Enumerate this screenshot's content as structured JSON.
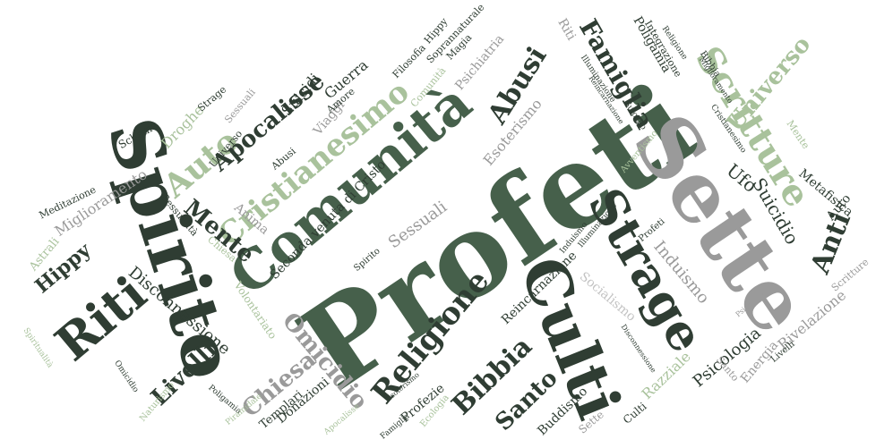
{
  "palette": {
    "dark": "#2f3d33",
    "green": "#46604b",
    "mid_green": "#7f9d78",
    "light_green": "#a9c29c",
    "gray": "#9a9a9a",
    "light_gray": "#c3c3c3"
  },
  "words": [
    {
      "id": "profeti",
      "text": "Profeti",
      "size": 128,
      "rot": -34,
      "color": "green"
    },
    {
      "id": "sette",
      "text": "Sette",
      "size": 92,
      "rot": 56,
      "color": "gray"
    },
    {
      "id": "spirito",
      "text": "Spirito",
      "size": 78,
      "rot": 72,
      "color": "dark"
    },
    {
      "id": "comunita",
      "text": "Comunità",
      "size": 60,
      "rot": -40,
      "color": "green"
    },
    {
      "id": "culti",
      "text": "Culti",
      "size": 68,
      "rot": 68,
      "color": "dark"
    },
    {
      "id": "strage",
      "text": "Strage",
      "size": 54,
      "rot": 60,
      "color": "dark"
    },
    {
      "id": "riti",
      "text": "Riti",
      "size": 54,
      "rot": -40,
      "color": "dark"
    },
    {
      "id": "scritture",
      "text": "Scritture",
      "size": 40,
      "rot": 58,
      "color": "light_green"
    },
    {
      "id": "cristianesimo",
      "text": "Cristianesimo",
      "size": 34,
      "rot": -40,
      "color": "light_green"
    },
    {
      "id": "abusi",
      "text": "Abusi",
      "size": 30,
      "rot": -58,
      "color": "dark"
    },
    {
      "id": "religione",
      "text": "Religione",
      "size": 34,
      "rot": -50,
      "color": "dark"
    },
    {
      "id": "auto1",
      "text": "Auto",
      "size": 36,
      "rot": -40,
      "color": "light_green"
    },
    {
      "id": "famiglia",
      "text": "Famiglia",
      "size": 28,
      "rot": 60,
      "color": "dark"
    },
    {
      "id": "apocalisse",
      "text": "Apocalisse",
      "size": 26,
      "rot": -40,
      "color": "dark"
    },
    {
      "id": "mente",
      "text": "Mente",
      "size": 26,
      "rot": 40,
      "color": "dark"
    },
    {
      "id": "bibbia1",
      "text": "Bibbia",
      "size": 30,
      "rot": -44,
      "color": "dark"
    },
    {
      "id": "omicidio",
      "text": "Omicidio",
      "size": 26,
      "rot": 50,
      "color": "gray"
    },
    {
      "id": "chiesa1",
      "text": "Chiesa",
      "size": 26,
      "rot": -40,
      "color": "gray"
    },
    {
      "id": "santo",
      "text": "Santo",
      "size": 26,
      "rot": -44,
      "color": "dark"
    },
    {
      "id": "livelli1",
      "text": "Livelli",
      "size": 26,
      "rot": -44,
      "color": "dark"
    },
    {
      "id": "hippy1",
      "text": "Hippy",
      "size": 22,
      "rot": -40,
      "color": "dark"
    },
    {
      "id": "anti",
      "text": "Anti",
      "size": 30,
      "rot": -68,
      "color": "dark"
    },
    {
      "id": "universo",
      "text": "Universo",
      "size": 26,
      "rot": -50,
      "color": "light_green"
    },
    {
      "id": "ufo",
      "text": "Ufo",
      "size": 20,
      "rot": 40,
      "color": "dark"
    },
    {
      "id": "suicidio",
      "text": "Suicidio",
      "size": 20,
      "rot": 60,
      "color": "dark"
    },
    {
      "id": "induismo",
      "text": "Induismo",
      "size": 18,
      "rot": 50,
      "color": "gray"
    },
    {
      "id": "psicologia",
      "text": "Psicologia",
      "size": 18,
      "rot": -40,
      "color": "dark"
    },
    {
      "id": "disconnessione",
      "text": "Disconnessione",
      "size": 18,
      "rot": 40,
      "color": "dark"
    },
    {
      "id": "miglioramento1",
      "text": "Miglioramento",
      "size": 16,
      "rot": -34,
      "color": "gray"
    },
    {
      "id": "droghe",
      "text": "Droghe",
      "size": 16,
      "rot": -46,
      "color": "light_green"
    },
    {
      "id": "esoterismo",
      "text": "Esoterismo",
      "size": 16,
      "rot": -50,
      "color": "gray"
    },
    {
      "id": "seconda",
      "text": "Seconda venuta di Cristo",
      "size": 14,
      "rot": -46,
      "color": "dark"
    },
    {
      "id": "sessuali1",
      "text": "Sessuali",
      "size": 18,
      "rot": -36,
      "color": "gray"
    },
    {
      "id": "guerra",
      "text": "Guerra",
      "size": 16,
      "rot": -40,
      "color": "dark"
    },
    {
      "id": "suicidi",
      "text": "Suicidi",
      "size": 16,
      "rot": -50,
      "color": "dark"
    },
    {
      "id": "viaggi",
      "text": "Viaggi",
      "size": 14,
      "rot": -50,
      "color": "gray"
    },
    {
      "id": "psichiatria",
      "text": "Psichiatria",
      "size": 14,
      "rot": -50,
      "color": "gray"
    },
    {
      "id": "reincarnazione",
      "text": "Reincarnazione",
      "size": 14,
      "rot": -44,
      "color": "dark"
    },
    {
      "id": "socialismo",
      "text": "Socialismo",
      "size": 14,
      "rot": 40,
      "color": "light_gray"
    },
    {
      "id": "poligamia1",
      "text": "Poligamia",
      "size": 14,
      "rot": 60,
      "color": "dark"
    },
    {
      "id": "rivelazione",
      "text": "Rivelazione",
      "size": 16,
      "rot": -40,
      "color": "gray"
    },
    {
      "id": "metafisica",
      "text": "Metafisica",
      "size": 14,
      "rot": 40,
      "color": "dark"
    },
    {
      "id": "energia",
      "text": "Energia",
      "size": 14,
      "rot": -50,
      "color": "gray"
    },
    {
      "id": "razziale",
      "text": "Razziale",
      "size": 16,
      "rot": -44,
      "color": "light_green"
    },
    {
      "id": "profezie",
      "text": "Profezie",
      "size": 14,
      "rot": -40,
      "color": "dark"
    },
    {
      "id": "buddismo",
      "text": "Buddismo",
      "size": 14,
      "rot": -44,
      "color": "dark"
    },
    {
      "id": "donazioni",
      "text": "Donazioni",
      "size": 14,
      "rot": -40,
      "color": "dark"
    },
    {
      "id": "templari",
      "text": "Templari",
      "size": 13,
      "rot": -40,
      "color": "dark"
    },
    {
      "id": "anima",
      "text": "Anima",
      "size": 14,
      "rot": 40,
      "color": "gray"
    },
    {
      "id": "astrali",
      "text": "Astrali",
      "size": 13,
      "rot": -50,
      "color": "light_green"
    },
    {
      "id": "volontariato",
      "text": "Volontariato",
      "size": 12,
      "rot": 56,
      "color": "light_green"
    },
    {
      "id": "sessualita",
      "text": "Sessualità",
      "size": 11,
      "rot": 50,
      "color": "dark"
    },
    {
      "id": "amore",
      "text": "Amore",
      "size": 11,
      "rot": -40,
      "color": "dark"
    },
    {
      "id": "filosofia",
      "text": "Filosofia",
      "size": 11,
      "rot": -46,
      "color": "dark"
    },
    {
      "id": "magia",
      "text": "Magia",
      "size": 11,
      "rot": -46,
      "color": "dark"
    },
    {
      "id": "soprannaturale",
      "text": "Soprannaturale",
      "size": 11,
      "rot": -46,
      "color": "dark"
    },
    {
      "id": "schema",
      "text": "Schema",
      "size": 12,
      "rot": -30,
      "color": "dark"
    },
    {
      "id": "meditazione",
      "text": "Meditazione",
      "size": 11,
      "rot": -26,
      "color": "dark"
    },
    {
      "id": "strage2",
      "text": "Strage",
      "size": 11,
      "rot": -40,
      "color": "dark"
    },
    {
      "id": "universo2",
      "text": "Universo",
      "size": 11,
      "rot": -50,
      "color": "dark"
    },
    {
      "id": "abusi2",
      "text": "Abusi",
      "size": 11,
      "rot": -40,
      "color": "dark"
    },
    {
      "id": "sessuali2",
      "text": "Sessuali",
      "size": 11,
      "rot": -50,
      "color": "gray"
    },
    {
      "id": "comunita2",
      "text": "Comunità",
      "size": 11,
      "rot": -50,
      "color": "light_green"
    },
    {
      "id": "hippy2",
      "text": "Hippy",
      "size": 11,
      "rot": -50,
      "color": "dark"
    },
    {
      "id": "riti2",
      "text": "Riti",
      "size": 14,
      "rot": 60,
      "color": "gray"
    },
    {
      "id": "integrazione",
      "text": "Integrazione",
      "size": 11,
      "rot": 60,
      "color": "dark"
    },
    {
      "id": "religione2",
      "text": "Religione",
      "size": 9,
      "rot": 56,
      "color": "dark"
    },
    {
      "id": "bibbia2",
      "text": "Bibbia",
      "size": 10,
      "rot": 56,
      "color": "dark"
    },
    {
      "id": "miglioramento2",
      "text": "Miglioramento",
      "size": 8,
      "rot": 56,
      "color": "dark"
    },
    {
      "id": "cristianesimo2",
      "text": "Cristianesimo",
      "size": 9,
      "rot": 56,
      "color": "dark"
    },
    {
      "id": "mente2",
      "text": "Mente",
      "size": 11,
      "rot": 56,
      "color": "light_green"
    },
    {
      "id": "illuminazione1",
      "text": "Illuminazione",
      "size": 9,
      "rot": 56,
      "color": "dark"
    },
    {
      "id": "reincarnazione2",
      "text": "Reincarnazione",
      "size": 8,
      "rot": 56,
      "color": "dark"
    },
    {
      "id": "suicidio2",
      "text": "Suicidio",
      "size": 9,
      "rot": 56,
      "color": "dark"
    },
    {
      "id": "avventismo",
      "text": "Avventismo",
      "size": 10,
      "rot": -50,
      "color": "light_green"
    },
    {
      "id": "illuminazione2",
      "text": "Illuminazione",
      "size": 9,
      "rot": -50,
      "color": "dark"
    },
    {
      "id": "induismo2",
      "text": "Induismo",
      "size": 9,
      "rot": -50,
      "color": "dark"
    },
    {
      "id": "profeti2",
      "text": "Profeti",
      "size": 10,
      "rot": -40,
      "color": "dark"
    },
    {
      "id": "chiesa2",
      "text": "Chiesa",
      "size": 11,
      "rot": 40,
      "color": "light_green"
    },
    {
      "id": "naturismo",
      "text": "Naturismo",
      "size": 10,
      "rot": -50,
      "color": "light_green"
    },
    {
      "id": "spiritualita",
      "text": "Spiritualità",
      "size": 9,
      "rot": 56,
      "color": "light_green"
    },
    {
      "id": "omicidio2",
      "text": "Omicidio",
      "size": 9,
      "rot": 56,
      "color": "dark"
    },
    {
      "id": "poligamia2",
      "text": "Poligamia",
      "size": 9,
      "rot": 40,
      "color": "dark"
    },
    {
      "id": "piramidale",
      "text": "Piramidale",
      "size": 9,
      "rot": -40,
      "color": "light_green"
    },
    {
      "id": "apocalisse2",
      "text": "Apocalisse",
      "size": 9,
      "rot": -40,
      "color": "light_green"
    },
    {
      "id": "famiglia2",
      "text": "Famiglia",
      "size": 9,
      "rot": -40,
      "color": "dark"
    },
    {
      "id": "esoterismo2",
      "text": "Esoterismo",
      "size": 8,
      "rot": -40,
      "color": "dark"
    },
    {
      "id": "ecologia",
      "text": "Ecologia",
      "size": 10,
      "rot": -50,
      "color": "light_green"
    },
    {
      "id": "culti2",
      "text": "Culti",
      "size": 12,
      "rot": -40,
      "color": "dark"
    },
    {
      "id": "sette2",
      "text": "Sette",
      "size": 12,
      "rot": -40,
      "color": "gray"
    },
    {
      "id": "santo2",
      "text": "Santo",
      "size": 11,
      "rot": 50,
      "color": "gray"
    },
    {
      "id": "livelli2",
      "text": "Livelli",
      "size": 10,
      "rot": -40,
      "color": "dark"
    },
    {
      "id": "scritture2",
      "text": "Scritture",
      "size": 11,
      "rot": -40,
      "color": "gray"
    },
    {
      "id": "disconnessione2",
      "text": "Disconnessione",
      "size": 8,
      "rot": 56,
      "color": "dark"
    },
    {
      "id": "psicologia2",
      "text": "Psicologia",
      "size": 8,
      "rot": -40,
      "color": "gray"
    },
    {
      "id": "auto2",
      "text": "Auto",
      "size": 14,
      "rot": -50,
      "color": "dark"
    },
    {
      "id": "spirito2",
      "text": "Spirito",
      "size": 10,
      "rot": -40,
      "color": "dark"
    }
  ]
}
